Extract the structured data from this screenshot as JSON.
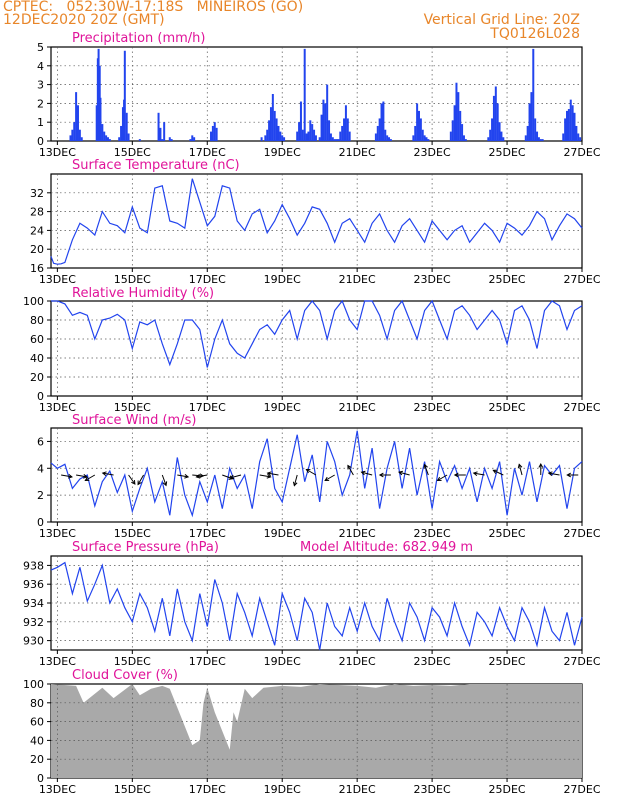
{
  "header": {
    "line1_left": "CPTEC:   052:30W-17:18S   MINEIROS (GO)",
    "line2_left": "12DEC2020 20Z (GMT)",
    "line2_right": "Vertical Grid Line: 20Z",
    "line3_right": "TQ0126L028"
  },
  "colors": {
    "header": "#e8862a",
    "panel_title": "#e0149a",
    "series": "#2244ee",
    "cloud": "#a9a9a9",
    "arrow": "#000000"
  },
  "x_axis": {
    "tick_labels": [
      "13DEC",
      "15DEC",
      "17DEC",
      "19DEC",
      "21DEC",
      "23DEC",
      "25DEC",
      "27DEC"
    ],
    "day_start": 12.83,
    "day_end": 27
  },
  "chart_data": [
    {
      "id": "precip",
      "type": "bar",
      "title": "Precipitation (mm/h)",
      "ylim": [
        0,
        5
      ],
      "yticks": [
        0,
        1,
        2,
        3,
        4,
        5
      ],
      "grid": true,
      "x": [
        13.35,
        13.4,
        13.45,
        13.5,
        13.55,
        13.6,
        13.65,
        14.05,
        14.08,
        14.1,
        14.13,
        14.15,
        14.2,
        14.25,
        14.3,
        14.35,
        14.4,
        14.65,
        14.7,
        14.75,
        14.78,
        14.8,
        14.85,
        14.9,
        15.2,
        15.7,
        15.75,
        15.8,
        15.85,
        16.0,
        16.05,
        16.55,
        16.6,
        16.65,
        17.1,
        17.15,
        17.2,
        17.25,
        18.45,
        18.55,
        18.6,
        18.65,
        18.7,
        18.75,
        18.8,
        18.85,
        18.9,
        18.95,
        19.0,
        19.05,
        19.4,
        19.45,
        19.5,
        19.55,
        19.6,
        19.65,
        19.7,
        19.75,
        19.8,
        19.85,
        19.9,
        20.0,
        20.05,
        20.1,
        20.15,
        20.2,
        20.25,
        20.3,
        20.35,
        20.4,
        20.45,
        20.5,
        20.55,
        20.6,
        20.65,
        20.7,
        20.75,
        20.8,
        21.5,
        21.55,
        21.6,
        21.65,
        21.7,
        21.75,
        21.8,
        21.85,
        21.9,
        22.5,
        22.55,
        22.6,
        22.65,
        22.7,
        22.75,
        22.8,
        22.85,
        22.9,
        23.5,
        23.55,
        23.6,
        23.65,
        23.7,
        23.75,
        23.8,
        23.85,
        23.9,
        24.5,
        24.55,
        24.6,
        24.65,
        24.7,
        24.75,
        24.8,
        24.85,
        24.9,
        25.5,
        25.55,
        25.6,
        25.65,
        25.7,
        25.75,
        25.8,
        25.85,
        25.9,
        25.95,
        26.5,
        26.55,
        26.6,
        26.65,
        26.7,
        26.75,
        26.8,
        26.85,
        26.9,
        26.95
      ],
      "values": [
        0.3,
        0.6,
        1.0,
        2.6,
        1.9,
        0.6,
        0.2,
        1.9,
        4.4,
        4.9,
        4.0,
        2.3,
        0.9,
        0.5,
        0.3,
        0.2,
        0.1,
        0.2,
        0.8,
        1.8,
        2.2,
        4.8,
        1.5,
        0.4,
        0.1,
        1.5,
        0.7,
        0.1,
        1.0,
        0.2,
        0.1,
        0.1,
        0.3,
        0.2,
        0.5,
        0.8,
        1.0,
        0.7,
        0.2,
        0.3,
        0.6,
        1.1,
        1.8,
        2.5,
        1.6,
        1.2,
        0.8,
        0.5,
        0.3,
        0.2,
        0.5,
        1.0,
        2.1,
        0.6,
        4.9,
        0.4,
        0.5,
        1.1,
        0.9,
        0.6,
        0.3,
        0.2,
        1.4,
        2.2,
        2.0,
        3.0,
        1.1,
        0.4,
        0.2,
        0.1,
        0.1,
        0.1,
        0.5,
        0.8,
        1.2,
        1.9,
        1.2,
        0.5,
        0.4,
        0.8,
        1.2,
        2.0,
        2.1,
        0.6,
        0.3,
        0.2,
        0.1,
        0.3,
        0.8,
        2.0,
        1.6,
        1.2,
        0.6,
        0.3,
        0.2,
        0.1,
        0.5,
        1.1,
        1.9,
        3.1,
        2.6,
        1.6,
        0.9,
        0.3,
        0.1,
        0.2,
        0.6,
        1.2,
        2.4,
        2.9,
        2.0,
        1.0,
        0.5,
        0.2,
        0.3,
        0.8,
        2.0,
        2.6,
        4.9,
        1.2,
        0.5,
        0.2,
        0.1,
        0.1,
        0.4,
        1.2,
        1.6,
        1.7,
        2.2,
        1.9,
        1.5,
        0.8,
        0.4,
        0.2
      ]
    },
    {
      "id": "temp",
      "type": "line",
      "title": "Surface Temperature (nC)",
      "ylim": [
        16,
        36
      ],
      "yticks": [
        16,
        20,
        24,
        28,
        32
      ],
      "grid": true,
      "x": [
        12.83,
        12.9,
        13.0,
        13.1,
        13.2,
        13.4,
        13.6,
        13.8,
        14.0,
        14.2,
        14.4,
        14.6,
        14.8,
        15.0,
        15.2,
        15.4,
        15.6,
        15.8,
        16.0,
        16.2,
        16.4,
        16.6,
        16.8,
        17.0,
        17.2,
        17.4,
        17.6,
        17.8,
        18.0,
        18.2,
        18.4,
        18.6,
        18.8,
        19.0,
        19.2,
        19.4,
        19.6,
        19.8,
        20.0,
        20.2,
        20.4,
        20.6,
        20.8,
        21.0,
        21.2,
        21.4,
        21.6,
        21.8,
        22.0,
        22.2,
        22.4,
        22.6,
        22.8,
        23.0,
        23.2,
        23.4,
        23.6,
        23.8,
        24.0,
        24.2,
        24.4,
        24.6,
        24.8,
        25.0,
        25.2,
        25.4,
        25.6,
        25.8,
        26.0,
        26.2,
        26.4,
        26.6,
        26.8,
        27.0
      ],
      "values": [
        18.5,
        17.0,
        16.8,
        16.9,
        17.2,
        22.0,
        25.5,
        24.5,
        23.0,
        28.0,
        25.5,
        25.0,
        23.5,
        29.0,
        24.5,
        23.5,
        33.0,
        33.5,
        26.0,
        25.5,
        24.5,
        35.0,
        30.0,
        25.0,
        27.0,
        33.5,
        33.0,
        26.0,
        24.0,
        27.5,
        28.5,
        23.5,
        26.0,
        29.5,
        26.5,
        23.0,
        25.5,
        29.0,
        28.5,
        25.5,
        21.5,
        25.5,
        26.5,
        24.0,
        21.5,
        25.5,
        27.5,
        24.0,
        21.5,
        25.0,
        26.5,
        24.0,
        21.5,
        26.0,
        24.0,
        22.0,
        24.0,
        25.0,
        21.5,
        23.5,
        25.5,
        24.0,
        21.5,
        25.5,
        24.5,
        23.0,
        25.0,
        28.0,
        26.5,
        22.0,
        25.0,
        27.5,
        26.5,
        24.5
      ]
    },
    {
      "id": "rh",
      "type": "line",
      "title": "Relative Humidity (%)",
      "ylim": [
        0,
        100
      ],
      "yticks": [
        0,
        20,
        40,
        60,
        80,
        100
      ],
      "grid": true,
      "x": [
        12.83,
        13.0,
        13.2,
        13.4,
        13.6,
        13.8,
        14.0,
        14.2,
        14.4,
        14.6,
        14.8,
        15.0,
        15.2,
        15.4,
        15.6,
        15.8,
        16.0,
        16.2,
        16.4,
        16.6,
        16.8,
        17.0,
        17.2,
        17.4,
        17.6,
        17.8,
        18.0,
        18.2,
        18.4,
        18.6,
        18.8,
        19.0,
        19.2,
        19.4,
        19.6,
        19.8,
        20.0,
        20.2,
        20.4,
        20.6,
        20.8,
        21.0,
        21.2,
        21.4,
        21.6,
        21.8,
        22.0,
        22.2,
        22.4,
        22.6,
        22.8,
        23.0,
        23.2,
        23.4,
        23.6,
        23.8,
        24.0,
        24.2,
        24.4,
        24.6,
        24.8,
        25.0,
        25.2,
        25.4,
        25.6,
        25.8,
        26.0,
        26.2,
        26.4,
        26.6,
        26.8,
        27.0
      ],
      "values": [
        100,
        100,
        97,
        85,
        88,
        85,
        60,
        80,
        82,
        86,
        80,
        50,
        78,
        75,
        80,
        55,
        33,
        55,
        80,
        80,
        70,
        30,
        60,
        80,
        55,
        45,
        40,
        55,
        70,
        75,
        65,
        80,
        90,
        60,
        90,
        100,
        90,
        60,
        90,
        100,
        80,
        70,
        100,
        100,
        85,
        60,
        90,
        100,
        80,
        60,
        90,
        100,
        80,
        60,
        90,
        95,
        85,
        70,
        80,
        90,
        80,
        55,
        90,
        95,
        80,
        50,
        90,
        100,
        95,
        70,
        90,
        95
      ]
    },
    {
      "id": "wind",
      "type": "line",
      "title": "Surface Wind (m/s)",
      "ylim": [
        0,
        7
      ],
      "yticks": [
        0,
        2,
        4,
        6
      ],
      "grid": true,
      "x": [
        12.83,
        13.0,
        13.2,
        13.4,
        13.6,
        13.8,
        14.0,
        14.2,
        14.4,
        14.6,
        14.8,
        15.0,
        15.2,
        15.4,
        15.6,
        15.8,
        16.0,
        16.2,
        16.4,
        16.6,
        16.8,
        17.0,
        17.2,
        17.4,
        17.6,
        17.8,
        18.0,
        18.2,
        18.4,
        18.6,
        18.8,
        19.0,
        19.2,
        19.4,
        19.6,
        19.8,
        20.0,
        20.2,
        20.4,
        20.6,
        20.8,
        21.0,
        21.2,
        21.4,
        21.6,
        21.8,
        22.0,
        22.2,
        22.4,
        22.6,
        22.8,
        23.0,
        23.2,
        23.4,
        23.6,
        23.8,
        24.0,
        24.2,
        24.4,
        24.6,
        24.8,
        25.0,
        25.2,
        25.4,
        25.6,
        25.8,
        26.0,
        26.2,
        26.4,
        26.6,
        26.8,
        27.0
      ],
      "values": [
        4.4,
        4.0,
        4.3,
        2.5,
        3.2,
        3.5,
        1.2,
        3.0,
        3.8,
        2.2,
        3.5,
        0.8,
        2.5,
        4.0,
        1.5,
        3.0,
        0.5,
        4.8,
        2.0,
        0.5,
        3.0,
        1.5,
        3.5,
        1.0,
        4.0,
        2.5,
        3.5,
        1.0,
        4.5,
        6.2,
        2.5,
        1.5,
        4.0,
        6.5,
        3.0,
        5.0,
        1.5,
        6.0,
        4.5,
        2.0,
        3.5,
        6.8,
        2.5,
        5.5,
        1.0,
        4.0,
        6.0,
        2.5,
        5.5,
        2.0,
        4.5,
        1.0,
        4.5,
        3.0,
        4.2,
        2.5,
        4.0,
        1.5,
        4.0,
        2.5,
        4.5,
        0.5,
        4.0,
        2.0,
        4.5,
        1.5,
        4.2,
        3.5,
        4.2,
        1.0,
        4.0,
        4.5
      ],
      "arrows": {
        "x": [
          13.1,
          13.5,
          14.0,
          14.5,
          14.9,
          15.3,
          15.8,
          16.2,
          16.6,
          17.0,
          17.4,
          17.9,
          18.4,
          18.9,
          19.4,
          19.9,
          20.4,
          20.9,
          21.4,
          21.9,
          22.4,
          22.9,
          23.4,
          23.9,
          24.4,
          24.9,
          25.4,
          25.9,
          26.4,
          26.9
        ],
        "dir_deg": [
          80,
          80,
          300,
          260,
          35,
          330,
          20,
          80,
          85,
          280,
          70,
          285,
          80,
          260,
          345,
          240,
          300,
          210,
          255,
          270,
          255,
          200,
          300,
          270,
          260,
          245,
          195,
          180,
          260,
          270
        ]
      }
    },
    {
      "id": "press",
      "type": "line",
      "title": "Surface Pressure (hPa)",
      "annotation": "Model Altitude: 682.949 m",
      "ylim": [
        929,
        939
      ],
      "yticks": [
        930,
        932,
        934,
        936,
        938
      ],
      "grid": true,
      "x": [
        12.83,
        13.0,
        13.2,
        13.4,
        13.6,
        13.8,
        14.0,
        14.2,
        14.4,
        14.6,
        14.8,
        15.0,
        15.2,
        15.4,
        15.6,
        15.8,
        16.0,
        16.2,
        16.4,
        16.6,
        16.8,
        17.0,
        17.2,
        17.4,
        17.6,
        17.8,
        18.0,
        18.2,
        18.4,
        18.6,
        18.8,
        19.0,
        19.2,
        19.4,
        19.6,
        19.8,
        20.0,
        20.2,
        20.4,
        20.6,
        20.8,
        21.0,
        21.2,
        21.4,
        21.6,
        21.8,
        22.0,
        22.2,
        22.4,
        22.6,
        22.8,
        23.0,
        23.2,
        23.4,
        23.6,
        23.8,
        24.0,
        24.2,
        24.4,
        24.6,
        24.8,
        25.0,
        25.2,
        25.4,
        25.6,
        25.8,
        26.0,
        26.2,
        26.4,
        26.6,
        26.8,
        27.0
      ],
      "values": [
        937.5,
        937.8,
        938.3,
        935.0,
        937.8,
        934.2,
        936.0,
        938.0,
        934.0,
        935.5,
        933.5,
        932.0,
        935.0,
        933.5,
        931.0,
        934.5,
        930.5,
        935.5,
        932.0,
        930.0,
        935.0,
        931.5,
        936.5,
        934.0,
        930.0,
        935.0,
        933.0,
        930.5,
        934.5,
        932.0,
        929.5,
        935.0,
        933.0,
        930.0,
        934.5,
        933.0,
        929.0,
        934.0,
        931.5,
        930.5,
        933.5,
        931.0,
        934.0,
        931.5,
        930.0,
        934.5,
        932.0,
        930.0,
        934.0,
        932.5,
        930.0,
        933.5,
        932.5,
        930.5,
        934.0,
        931.5,
        929.5,
        933.0,
        932.0,
        930.5,
        933.5,
        931.5,
        930.0,
        933.5,
        932.0,
        929.5,
        933.5,
        931.0,
        930.0,
        933.0,
        929.5,
        932.5
      ]
    },
    {
      "id": "cloud",
      "type": "area",
      "title": "Cloud Cover (%)",
      "ylim": [
        0,
        100
      ],
      "yticks": [
        0,
        20,
        40,
        60,
        80,
        100
      ],
      "grid": true,
      "x": [
        12.83,
        13.5,
        13.7,
        14.2,
        14.5,
        15.0,
        15.2,
        15.5,
        15.8,
        16.0,
        16.2,
        16.4,
        16.6,
        16.8,
        16.9,
        17.0,
        17.2,
        17.4,
        17.6,
        17.7,
        17.8,
        18.0,
        18.2,
        18.5,
        19.0,
        19.5,
        20.0,
        20.5,
        21.0,
        21.5,
        22.0,
        22.5,
        23.0,
        23.5,
        24.0,
        25.0,
        26.0,
        27.0
      ],
      "values": [
        100,
        98,
        80,
        96,
        85,
        100,
        88,
        95,
        98,
        95,
        75,
        55,
        35,
        40,
        80,
        96,
        70,
        50,
        30,
        70,
        60,
        95,
        85,
        96,
        98,
        97,
        100,
        99,
        98,
        96,
        100,
        98,
        99,
        98,
        100,
        100,
        100,
        100
      ]
    }
  ]
}
